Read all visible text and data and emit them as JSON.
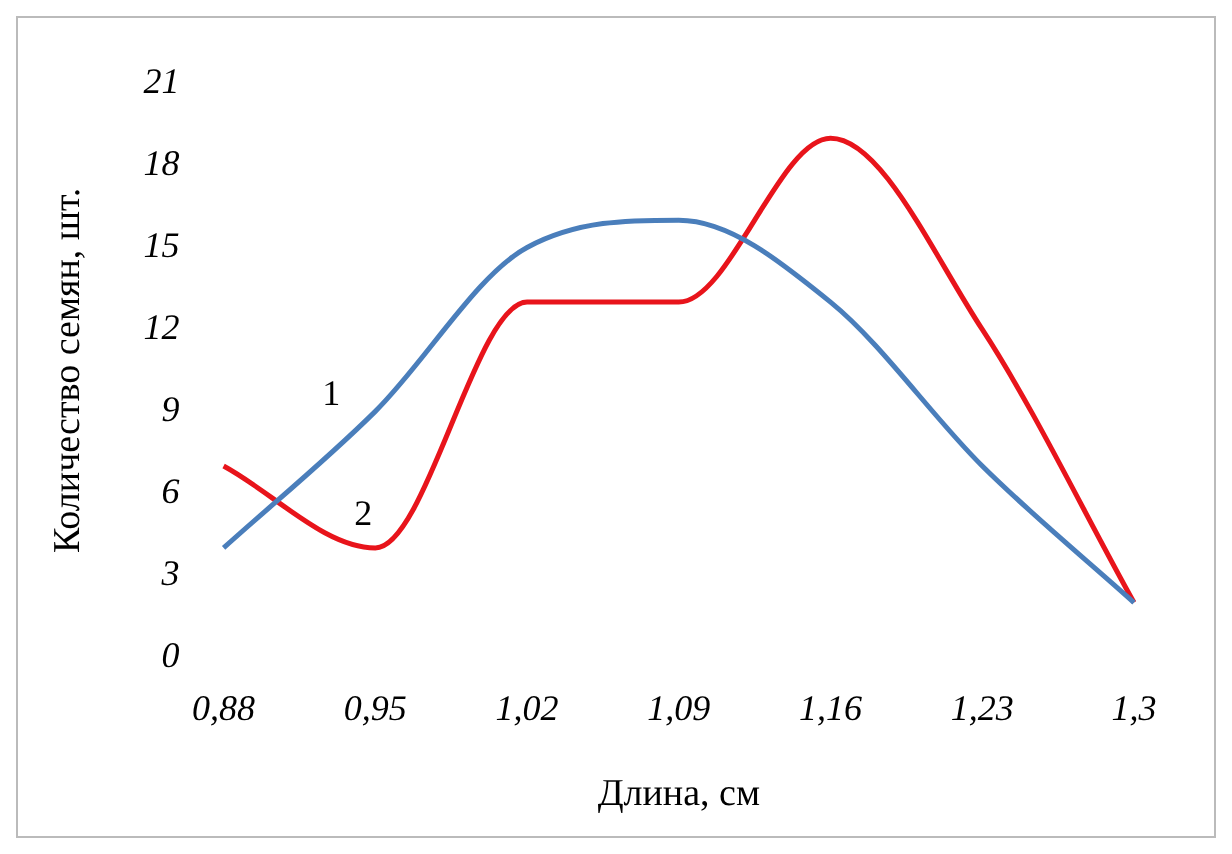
{
  "chart_data": {
    "type": "line",
    "xlabel": "Длина, см",
    "ylabel": "Количество семян, шт.",
    "categories": [
      "0,88",
      "0,95",
      "1,02",
      "1,09",
      "1,16",
      "1,23",
      "1,3"
    ],
    "series": [
      {
        "name": "1",
        "color": "#4a7ebb",
        "values": [
          4,
          9,
          15,
          16,
          13,
          7,
          2
        ]
      },
      {
        "name": "2",
        "color": "#e8141b",
        "values": [
          7,
          4,
          13,
          13,
          19,
          12,
          2
        ]
      }
    ],
    "ylim": [
      0,
      21
    ],
    "yticks": [
      0,
      3,
      6,
      9,
      12,
      15,
      18,
      21
    ],
    "grid": false,
    "legend": false,
    "marker": "none",
    "line_style": "solid"
  }
}
